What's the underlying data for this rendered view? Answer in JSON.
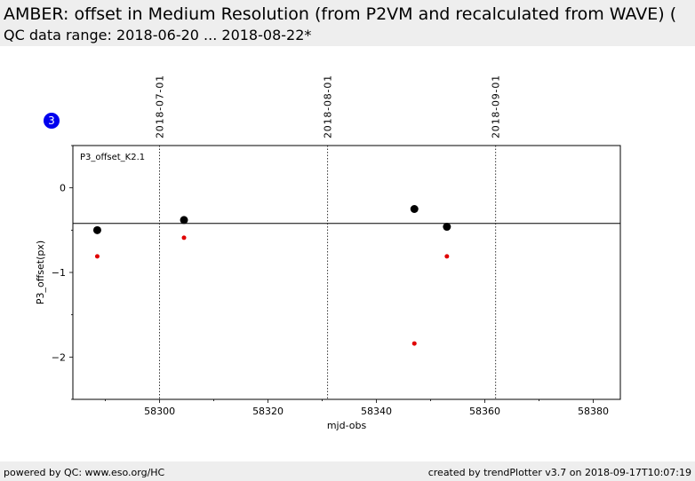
{
  "header": {
    "title": "AMBER: offset in Medium Resolution (from P2VM and recalculated from WAVE) (",
    "subtitle": "QC data range: 2018-06-20 ... 2018-08-22*"
  },
  "badge": "3",
  "footer": {
    "left": "powered by QC: www.eso.org/HC",
    "right": "created by trendPlotter v3.7 on 2018-09-17T10:07:19"
  },
  "chart_data": {
    "type": "scatter",
    "panel_label": "P3_offset_K2.1",
    "xlabel": "mjd-obs",
    "ylabel": "P3_offset(px)",
    "xlim": [
      58284,
      58385
    ],
    "ylim": [
      -2.5,
      0.5
    ],
    "x_ticks": [
      58300,
      58320,
      58340,
      58360,
      58380
    ],
    "y_ticks": [
      0,
      -1,
      -2
    ],
    "y_tick_labels": [
      "0",
      "−1",
      "−2"
    ],
    "date_markers": [
      {
        "x": 58300.0,
        "label": "2018-07-01"
      },
      {
        "x": 58331.0,
        "label": "2018-08-01"
      },
      {
        "x": 58362.0,
        "label": "2018-09-01"
      }
    ],
    "reference_line": -0.42,
    "series": [
      {
        "color": "#000000",
        "points": [
          [
            58288.5,
            -0.5
          ],
          [
            58304.5,
            -0.38
          ],
          [
            58347.0,
            -0.25
          ],
          [
            58353.0,
            -0.46
          ]
        ]
      },
      {
        "color": "#e00000",
        "points": [
          [
            58288.5,
            -0.81
          ],
          [
            58304.5,
            -0.59
          ],
          [
            58347.0,
            -1.84
          ],
          [
            58353.0,
            -0.81
          ]
        ]
      }
    ],
    "badge_color": "#0000ee"
  }
}
